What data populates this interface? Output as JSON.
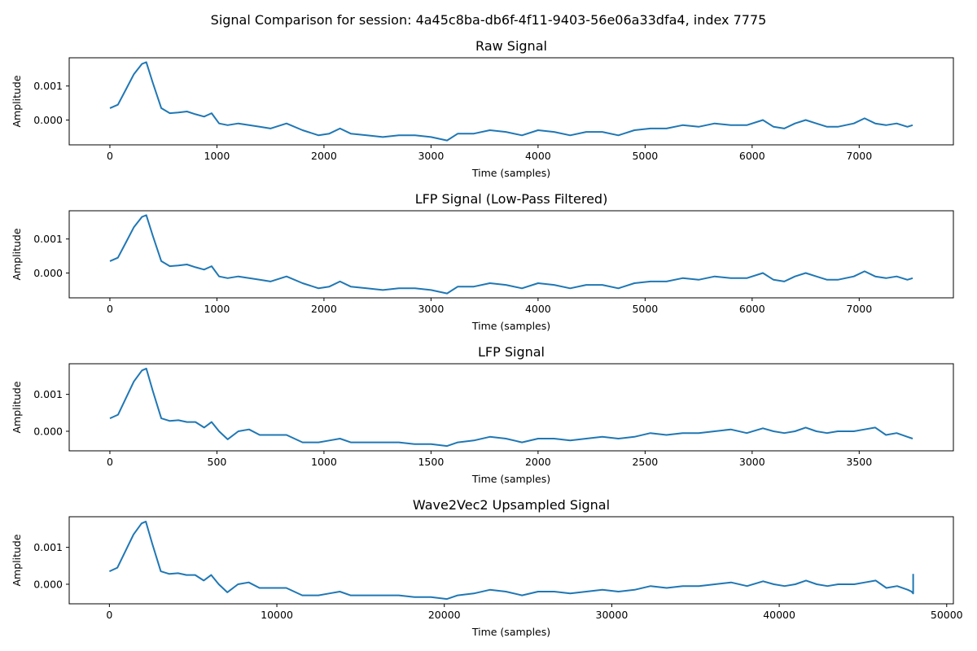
{
  "figure": {
    "title": "Signal Comparison for session: 4a45c8ba-db6f-4f11-9403-56e06a33dfa4, index 7775"
  },
  "chart_data": [
    {
      "type": "line",
      "title": "Raw Signal",
      "xlabel": "Time (samples)",
      "ylabel": "Amplitude",
      "xlim": [
        -380,
        7880
      ],
      "ylim": [
        -0.00073,
        0.00183
      ],
      "xticks": [
        0,
        1000,
        2000,
        3000,
        4000,
        5000,
        6000,
        7000
      ],
      "yticks": [
        0.0,
        0.001
      ],
      "ytick_labels": [
        "0.000",
        "0.001"
      ],
      "color": "#1f77b4",
      "grid": false,
      "series": [
        {
          "x": [
            0,
            75,
            150,
            225,
            300,
            340,
            400,
            480,
            560,
            640,
            720,
            800,
            880,
            950,
            1020,
            1100,
            1200,
            1300,
            1400,
            1500,
            1650,
            1800,
            1950,
            2050,
            2150,
            2250,
            2400,
            2550,
            2700,
            2850,
            3000,
            3150,
            3250,
            3400,
            3550,
            3700,
            3850,
            4000,
            4150,
            4300,
            4450,
            4600,
            4750,
            4900,
            5050,
            5200,
            5350,
            5500,
            5650,
            5800,
            5950,
            6100,
            6200,
            6300,
            6400,
            6500,
            6600,
            6700,
            6800,
            6950,
            7050,
            7150,
            7250,
            7350,
            7450,
            7500
          ],
          "y": [
            0.00035,
            0.00045,
            0.0009,
            0.00135,
            0.00165,
            0.0017,
            0.0011,
            0.00035,
            0.0002,
            0.00022,
            0.00025,
            0.00017,
            0.0001,
            0.0002,
            -0.0001,
            -0.00015,
            -0.0001,
            -0.00015,
            -0.0002,
            -0.00025,
            -0.0001,
            -0.0003,
            -0.00045,
            -0.0004,
            -0.00025,
            -0.0004,
            -0.00045,
            -0.0005,
            -0.00045,
            -0.00045,
            -0.0005,
            -0.0006,
            -0.0004,
            -0.0004,
            -0.0003,
            -0.00035,
            -0.00045,
            -0.0003,
            -0.00035,
            -0.00045,
            -0.00035,
            -0.00035,
            -0.00045,
            -0.0003,
            -0.00025,
            -0.00025,
            -0.00015,
            -0.0002,
            -0.0001,
            -0.00015,
            -0.00015,
            0.0,
            -0.0002,
            -0.00025,
            -0.0001,
            0.0,
            -0.0001,
            -0.0002,
            -0.0002,
            -0.0001,
            5e-05,
            -0.0001,
            -0.00015,
            -0.0001,
            -0.0002,
            -0.00015
          ]
        }
      ]
    },
    {
      "type": "line",
      "title": "LFP Signal (Low-Pass Filtered)",
      "xlabel": "Time (samples)",
      "ylabel": "Amplitude",
      "xlim": [
        -380,
        7880
      ],
      "ylim": [
        -0.00073,
        0.00183
      ],
      "xticks": [
        0,
        1000,
        2000,
        3000,
        4000,
        5000,
        6000,
        7000
      ],
      "yticks": [
        0.0,
        0.001
      ],
      "ytick_labels": [
        "0.000",
        "0.001"
      ],
      "color": "#1f77b4",
      "grid": false,
      "series": [
        {
          "x": [
            0,
            75,
            150,
            225,
            300,
            340,
            400,
            480,
            560,
            640,
            720,
            800,
            880,
            950,
            1020,
            1100,
            1200,
            1300,
            1400,
            1500,
            1650,
            1800,
            1950,
            2050,
            2150,
            2250,
            2400,
            2550,
            2700,
            2850,
            3000,
            3150,
            3250,
            3400,
            3550,
            3700,
            3850,
            4000,
            4150,
            4300,
            4450,
            4600,
            4750,
            4900,
            5050,
            5200,
            5350,
            5500,
            5650,
            5800,
            5950,
            6100,
            6200,
            6300,
            6400,
            6500,
            6600,
            6700,
            6800,
            6950,
            7050,
            7150,
            7250,
            7350,
            7450,
            7500
          ],
          "y": [
            0.00035,
            0.00045,
            0.0009,
            0.00135,
            0.00165,
            0.0017,
            0.0011,
            0.00035,
            0.0002,
            0.00022,
            0.00025,
            0.00017,
            0.0001,
            0.0002,
            -0.0001,
            -0.00015,
            -0.0001,
            -0.00015,
            -0.0002,
            -0.00025,
            -0.0001,
            -0.0003,
            -0.00045,
            -0.0004,
            -0.00025,
            -0.0004,
            -0.00045,
            -0.0005,
            -0.00045,
            -0.00045,
            -0.0005,
            -0.0006,
            -0.0004,
            -0.0004,
            -0.0003,
            -0.00035,
            -0.00045,
            -0.0003,
            -0.00035,
            -0.00045,
            -0.00035,
            -0.00035,
            -0.00045,
            -0.0003,
            -0.00025,
            -0.00025,
            -0.00015,
            -0.0002,
            -0.0001,
            -0.00015,
            -0.00015,
            0.0,
            -0.0002,
            -0.00025,
            -0.0001,
            0.0,
            -0.0001,
            -0.0002,
            -0.0002,
            -0.0001,
            5e-05,
            -0.0001,
            -0.00015,
            -0.0001,
            -0.0002,
            -0.00015
          ]
        }
      ]
    },
    {
      "type": "line",
      "title": "LFP Signal",
      "xlabel": "Time (samples)",
      "ylabel": "Amplitude",
      "xlim": [
        -190,
        3940
      ],
      "ylim": [
        -0.00053,
        0.00183
      ],
      "xticks": [
        0,
        500,
        1000,
        1500,
        2000,
        2500,
        3000,
        3500
      ],
      "yticks": [
        0.0,
        0.001
      ],
      "ytick_labels": [
        "0.000",
        "0.001"
      ],
      "color": "#1f77b4",
      "grid": false,
      "series": [
        {
          "x": [
            0,
            38,
            75,
            112,
            150,
            170,
            200,
            240,
            280,
            320,
            360,
            400,
            440,
            475,
            510,
            550,
            600,
            650,
            700,
            750,
            825,
            900,
            975,
            1025,
            1075,
            1125,
            1200,
            1275,
            1350,
            1425,
            1500,
            1575,
            1625,
            1700,
            1775,
            1850,
            1925,
            2000,
            2075,
            2150,
            2225,
            2300,
            2375,
            2450,
            2525,
            2600,
            2675,
            2750,
            2825,
            2900,
            2975,
            3050,
            3100,
            3150,
            3200,
            3250,
            3300,
            3350,
            3400,
            3475,
            3525,
            3575,
            3625,
            3675,
            3725,
            3750
          ],
          "y": [
            0.00035,
            0.00045,
            0.0009,
            0.00135,
            0.00165,
            0.0017,
            0.0011,
            0.00035,
            0.00028,
            0.0003,
            0.00025,
            0.00025,
            0.0001,
            0.00025,
            0.0,
            -0.00022,
            0.0,
            5e-05,
            -0.0001,
            -0.0001,
            -0.0001,
            -0.0003,
            -0.0003,
            -0.00025,
            -0.0002,
            -0.0003,
            -0.0003,
            -0.0003,
            -0.0003,
            -0.00035,
            -0.00035,
            -0.0004,
            -0.0003,
            -0.00025,
            -0.00015,
            -0.0002,
            -0.0003,
            -0.0002,
            -0.0002,
            -0.00025,
            -0.0002,
            -0.00015,
            -0.0002,
            -0.00015,
            -5e-05,
            -0.0001,
            -5e-05,
            -5e-05,
            0.0,
            5e-05,
            -5e-05,
            8e-05,
            0.0,
            -5e-05,
            0.0,
            0.0001,
            0.0,
            -5e-05,
            0.0,
            0.0,
            5e-05,
            0.0001,
            -0.0001,
            -5e-05,
            -0.00015,
            -0.0002
          ]
        }
      ]
    },
    {
      "type": "line",
      "title": "Wave2Vec2 Upsampled Signal",
      "xlabel": "Time (samples)",
      "ylabel": "Amplitude",
      "xlim": [
        -2400,
        50400
      ],
      "ylim": [
        -0.00053,
        0.00183
      ],
      "xticks": [
        0,
        10000,
        20000,
        30000,
        40000,
        50000
      ],
      "yticks": [
        0.0,
        0.001
      ],
      "ytick_labels": [
        "0.000",
        "0.001"
      ],
      "color": "#1f77b4",
      "grid": false,
      "series": [
        {
          "x": [
            0,
            480,
            960,
            1440,
            1920,
            2175,
            2560,
            3070,
            3580,
            4100,
            4600,
            5120,
            5630,
            6080,
            6530,
            7040,
            7680,
            8320,
            8960,
            9600,
            10560,
            11520,
            12480,
            13120,
            13760,
            14400,
            15360,
            16320,
            17280,
            18240,
            19200,
            20160,
            20800,
            21760,
            22720,
            23680,
            24640,
            25600,
            26560,
            27520,
            28480,
            29440,
            30400,
            31360,
            32320,
            33280,
            34240,
            35200,
            36160,
            37120,
            38080,
            39040,
            39680,
            40320,
            40960,
            41600,
            42240,
            42880,
            43520,
            44480,
            45120,
            45760,
            46400,
            47040,
            47680,
            47900,
            48000,
            48000
          ],
          "y": [
            0.00035,
            0.00045,
            0.0009,
            0.00135,
            0.00165,
            0.0017,
            0.0011,
            0.00035,
            0.00028,
            0.0003,
            0.00025,
            0.00025,
            0.0001,
            0.00025,
            0.0,
            -0.00022,
            0.0,
            5e-05,
            -0.0001,
            -0.0001,
            -0.0001,
            -0.0003,
            -0.0003,
            -0.00025,
            -0.0002,
            -0.0003,
            -0.0003,
            -0.0003,
            -0.0003,
            -0.00035,
            -0.00035,
            -0.0004,
            -0.0003,
            -0.00025,
            -0.00015,
            -0.0002,
            -0.0003,
            -0.0002,
            -0.0002,
            -0.00025,
            -0.0002,
            -0.00015,
            -0.0002,
            -0.00015,
            -5e-05,
            -0.0001,
            -5e-05,
            -5e-05,
            0.0,
            5e-05,
            -5e-05,
            8e-05,
            0.0,
            -5e-05,
            0.0,
            0.0001,
            0.0,
            -5e-05,
            0.0,
            0.0,
            5e-05,
            0.0001,
            -0.0001,
            -5e-05,
            -0.00015,
            -0.0002,
            -0.00025,
            0.00028
          ]
        }
      ]
    }
  ]
}
